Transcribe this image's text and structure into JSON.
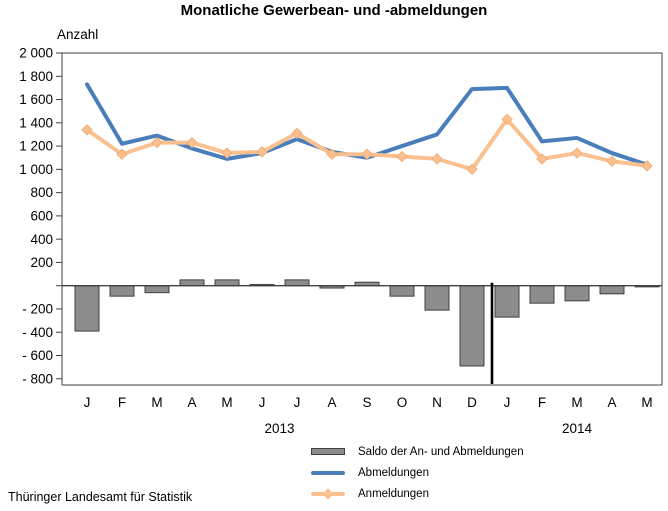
{
  "source": "Thüringer Landesamt für Statistik",
  "colors": {
    "abmeldungen": "#4a7ebb",
    "anmeldungen": "#fac08f",
    "anmeldungen_edge": "#f2ad76",
    "saldo_fill": "#8c8c8c",
    "saldo_border": "#404040",
    "axis": "#404040",
    "divider": "#000000",
    "background": "#ffffff"
  },
  "chart_data": {
    "type": "line+bar combo",
    "title": "Monatliche Gewerbean- und -abmeldungen",
    "ylabel": "Anzahl",
    "xlabel": "",
    "ylim": [
      -800,
      2000
    ],
    "grid": false,
    "legend_position": "bottom",
    "x_tick_labels": [
      "J",
      "F",
      "M",
      "A",
      "M",
      "J",
      "J",
      "A",
      "S",
      "O",
      "N",
      "D",
      "J",
      "F",
      "M",
      "A",
      "M"
    ],
    "year_groups": [
      {
        "label": "2013",
        "months": 12
      },
      {
        "label": "2014",
        "months": 5
      }
    ],
    "y_ticks": [
      {
        "value": 2000,
        "label": "2 000"
      },
      {
        "value": 1800,
        "label": "1 800"
      },
      {
        "value": 1600,
        "label": "1 600"
      },
      {
        "value": 1400,
        "label": "1 400"
      },
      {
        "value": 1200,
        "label": "1 200"
      },
      {
        "value": 1000,
        "label": "1 000"
      },
      {
        "value": 800,
        "label": "800"
      },
      {
        "value": 600,
        "label": "600"
      },
      {
        "value": 400,
        "label": "400"
      },
      {
        "value": 200,
        "label": "200"
      },
      {
        "value": 0,
        "label": ""
      },
      {
        "value": -200,
        "label": "- 200"
      },
      {
        "value": -400,
        "label": "- 400"
      },
      {
        "value": -600,
        "label": "- 600"
      },
      {
        "value": -800,
        "label": "- 800"
      }
    ],
    "series": [
      {
        "name": "Saldo der An- und Abmeldungen",
        "type": "bar",
        "values": [
          -390,
          -90,
          -60,
          50,
          50,
          10,
          50,
          -20,
          30,
          -90,
          -210,
          -690,
          -270,
          -150,
          -130,
          -70,
          -10
        ]
      },
      {
        "name": "Abmeldungen",
        "type": "line",
        "values": [
          1730,
          1220,
          1290,
          1180,
          1090,
          1140,
          1260,
          1150,
          1100,
          1200,
          1300,
          1690,
          1700,
          1240,
          1270,
          1140,
          1040
        ]
      },
      {
        "name": "Anmeldungen",
        "type": "line-diamond",
        "values": [
          1340,
          1130,
          1230,
          1230,
          1140,
          1150,
          1310,
          1130,
          1130,
          1110,
          1090,
          1000,
          1430,
          1090,
          1140,
          1070,
          1030
        ]
      }
    ]
  }
}
